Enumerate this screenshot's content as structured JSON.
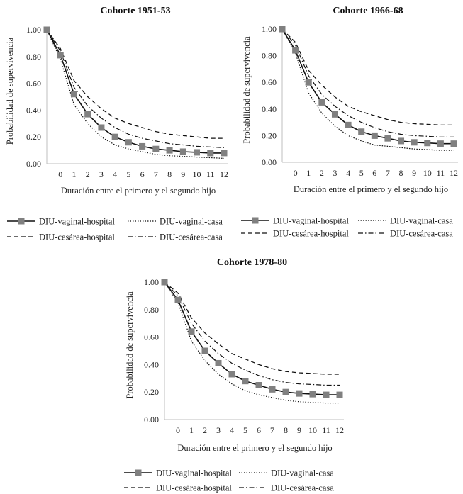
{
  "chart_data": [
    {
      "type": "line",
      "title": "Cohorte 1951-53",
      "xlabel": "Duración entre el primero y el segundo hijo",
      "ylabel": "Probabilidad de supervivencia",
      "x": [
        "",
        "0",
        "1",
        "2",
        "3",
        "4",
        "5",
        "6",
        "7",
        "8",
        "9",
        "10",
        "11",
        "12"
      ],
      "y_ticks": [
        "0.00",
        "0.20",
        "0.40",
        "0.60",
        "0.80",
        "1.00"
      ],
      "ylim": [
        0,
        1
      ],
      "series": [
        {
          "name": "DIU-vaginal-hospital",
          "style": "square-solid",
          "values": [
            1.0,
            0.81,
            0.52,
            0.37,
            0.27,
            0.2,
            0.16,
            0.13,
            0.11,
            0.1,
            0.09,
            0.085,
            0.08,
            0.08
          ]
        },
        {
          "name": "DIU-vaginal-casa",
          "style": "dotted",
          "values": [
            1.0,
            0.78,
            0.44,
            0.3,
            0.2,
            0.14,
            0.11,
            0.09,
            0.07,
            0.06,
            0.055,
            0.05,
            0.045,
            0.04
          ]
        },
        {
          "name": "DIU-cesárea-hospital",
          "style": "dashed",
          "values": [
            1.0,
            0.86,
            0.62,
            0.5,
            0.41,
            0.34,
            0.3,
            0.27,
            0.24,
            0.22,
            0.21,
            0.2,
            0.19,
            0.19
          ]
        },
        {
          "name": "DIU-cesárea-casa",
          "style": "dashdot",
          "values": [
            1.0,
            0.84,
            0.57,
            0.43,
            0.34,
            0.27,
            0.22,
            0.19,
            0.17,
            0.15,
            0.14,
            0.13,
            0.125,
            0.12
          ]
        }
      ]
    },
    {
      "type": "line",
      "title": "Cohorte 1966-68",
      "xlabel": "Duración entre el primero y el segundo hijo",
      "ylabel": "Probabilidad de supervivencia",
      "x": [
        "",
        "0",
        "1",
        "2",
        "3",
        "4",
        "5",
        "6",
        "7",
        "8",
        "9",
        "10",
        "11",
        "12"
      ],
      "y_ticks": [
        "0.00",
        "0.20",
        "0.40",
        "0.60",
        "0.80",
        "1.00"
      ],
      "ylim": [
        0,
        1
      ],
      "series": [
        {
          "name": "DIU-vaginal-hospital",
          "style": "square-solid",
          "values": [
            1.0,
            0.84,
            0.6,
            0.45,
            0.36,
            0.28,
            0.23,
            0.2,
            0.18,
            0.16,
            0.15,
            0.145,
            0.14,
            0.14
          ]
        },
        {
          "name": "DIU-vaginal-casa",
          "style": "dotted",
          "values": [
            1.0,
            0.82,
            0.52,
            0.37,
            0.27,
            0.2,
            0.16,
            0.13,
            0.12,
            0.11,
            0.1,
            0.095,
            0.09,
            0.09
          ]
        },
        {
          "name": "DIU-cesárea-hospital",
          "style": "dashed",
          "values": [
            1.0,
            0.9,
            0.69,
            0.58,
            0.49,
            0.42,
            0.38,
            0.35,
            0.32,
            0.3,
            0.29,
            0.285,
            0.28,
            0.28
          ]
        },
        {
          "name": "DIU-cesárea-casa",
          "style": "dashdot",
          "values": [
            1.0,
            0.88,
            0.65,
            0.51,
            0.42,
            0.35,
            0.3,
            0.26,
            0.23,
            0.21,
            0.2,
            0.195,
            0.19,
            0.19
          ]
        }
      ]
    },
    {
      "type": "line",
      "title": "Cohorte 1978-80",
      "xlabel": "Duración entre el primero y el segundo hijo",
      "ylabel": "Probabilidad de supervivencia",
      "x": [
        "",
        "0",
        "1",
        "2",
        "3",
        "4",
        "5",
        "6",
        "7",
        "8",
        "9",
        "10",
        "11",
        "12"
      ],
      "y_ticks": [
        "0.00",
        "0.20",
        "0.40",
        "0.60",
        "0.80",
        "1.00"
      ],
      "ylim": [
        0,
        1
      ],
      "series": [
        {
          "name": "DIU-vaginal-hospital",
          "style": "square-solid",
          "values": [
            1.0,
            0.87,
            0.64,
            0.5,
            0.41,
            0.33,
            0.28,
            0.25,
            0.22,
            0.2,
            0.19,
            0.185,
            0.18,
            0.18
          ]
        },
        {
          "name": "DIU-vaginal-casa",
          "style": "dotted",
          "values": [
            1.0,
            0.85,
            0.57,
            0.43,
            0.33,
            0.26,
            0.21,
            0.18,
            0.16,
            0.14,
            0.13,
            0.125,
            0.12,
            0.12
          ]
        },
        {
          "name": "DIU-cesárea-hospital",
          "style": "dashed",
          "values": [
            1.0,
            0.92,
            0.74,
            0.63,
            0.55,
            0.48,
            0.44,
            0.4,
            0.37,
            0.35,
            0.34,
            0.335,
            0.33,
            0.33
          ]
        },
        {
          "name": "DIU-cesárea-casa",
          "style": "dashdot",
          "values": [
            1.0,
            0.9,
            0.7,
            0.57,
            0.48,
            0.41,
            0.36,
            0.32,
            0.29,
            0.27,
            0.26,
            0.255,
            0.25,
            0.25
          ]
        }
      ]
    }
  ],
  "colors": {
    "marker": "#808080",
    "solid_line": "#111111",
    "axis": "#bfbfbf"
  }
}
